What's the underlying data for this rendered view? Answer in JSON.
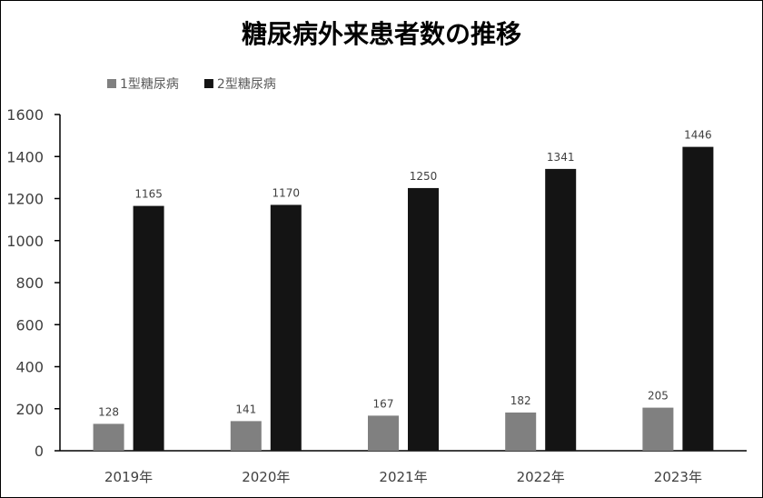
{
  "chart_data": {
    "type": "bar",
    "title": "糖尿病外来患者数の推移",
    "categories": [
      "2019年",
      "2020年",
      "2021年",
      "2022年",
      "2023年"
    ],
    "series": [
      {
        "name": "1型糖尿病",
        "color": "#808080",
        "values": [
          128,
          141,
          167,
          182,
          205
        ]
      },
      {
        "name": "2型糖尿病",
        "color": "#141414",
        "values": [
          1165,
          1170,
          1250,
          1341,
          1446
        ]
      }
    ],
    "ylim": [
      0,
      1600
    ],
    "yticks": [
      0,
      200,
      400,
      600,
      800,
      1000,
      1200,
      1400,
      1600
    ],
    "xlabel": "",
    "ylabel": "",
    "grid": false,
    "legend_position": "top-left"
  }
}
